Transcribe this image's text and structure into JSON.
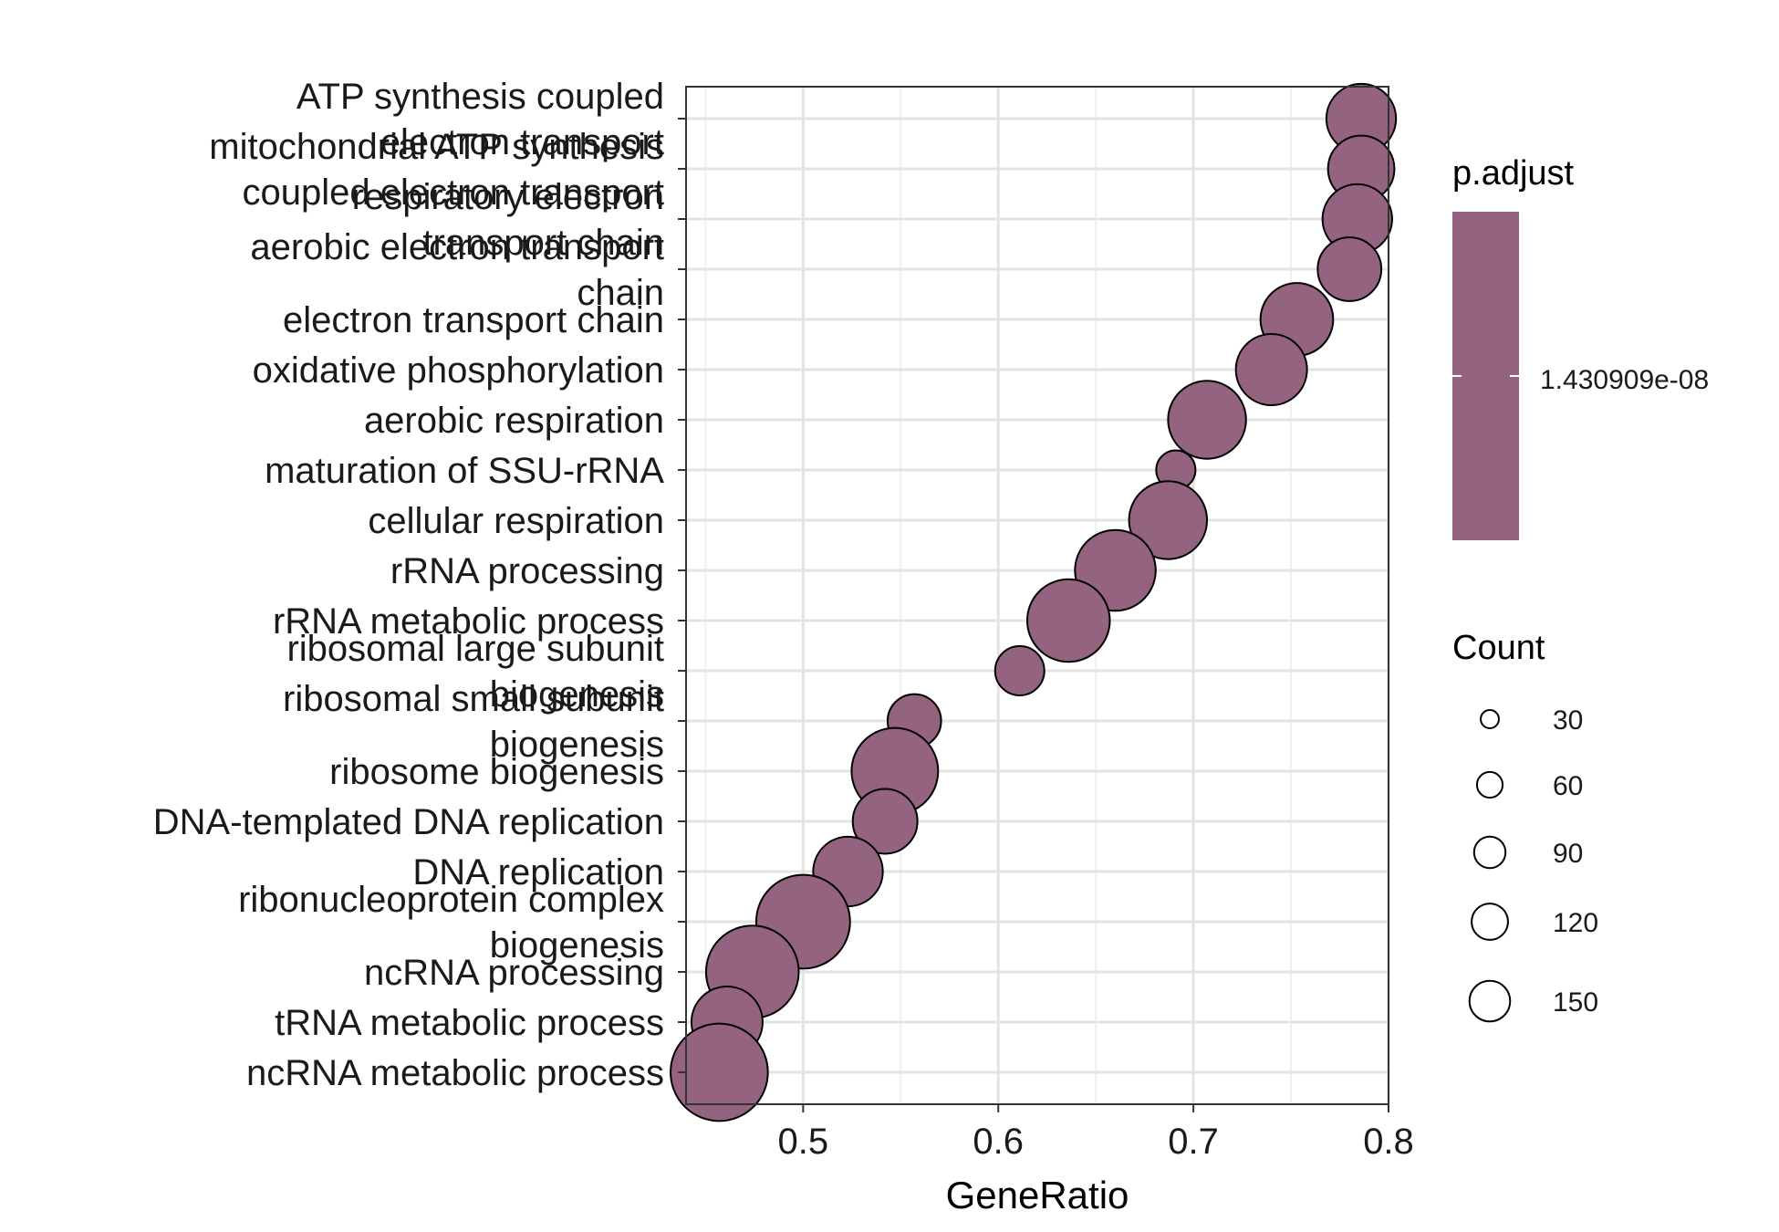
{
  "chart_data": {
    "type": "scatter",
    "xlabel": "GeneRatio",
    "xlim": [
      0.44,
      0.8
    ],
    "xticks": [
      0.5,
      0.6,
      0.7,
      0.8
    ],
    "xtick_labels": [
      "0.5",
      "0.6",
      "0.7",
      "0.8"
    ],
    "grid": true,
    "point_color": "#946380",
    "categories": [
      {
        "label": [
          "ATP synthesis coupled",
          "electron transport"
        ],
        "gene_ratio": 0.786,
        "count": 110
      },
      {
        "label": [
          "mitochondrial ATP synthesis",
          "coupled electron transport"
        ],
        "gene_ratio": 0.786,
        "count": 100
      },
      {
        "label": [
          "respiratory electron",
          "transport chain"
        ],
        "gene_ratio": 0.784,
        "count": 110
      },
      {
        "label": [
          "aerobic electron transport",
          "chain"
        ],
        "gene_ratio": 0.78,
        "count": 92
      },
      {
        "label": [
          "electron transport chain"
        ],
        "gene_ratio": 0.753,
        "count": 120
      },
      {
        "label": [
          "oxidative phosphorylation"
        ],
        "gene_ratio": 0.74,
        "count": 115
      },
      {
        "label": [
          "aerobic respiration"
        ],
        "gene_ratio": 0.707,
        "count": 138
      },
      {
        "label": [
          "maturation of SSU-rRNA"
        ],
        "gene_ratio": 0.691,
        "count": 35
      },
      {
        "label": [
          "cellular respiration"
        ],
        "gene_ratio": 0.687,
        "count": 138
      },
      {
        "label": [
          "rRNA processing"
        ],
        "gene_ratio": 0.66,
        "count": 148
      },
      {
        "label": [
          "rRNA metabolic process"
        ],
        "gene_ratio": 0.636,
        "count": 155
      },
      {
        "label": [
          "ribosomal large subunit",
          "biogenesis"
        ],
        "gene_ratio": 0.611,
        "count": 55
      },
      {
        "label": [
          "ribosomal small subunit",
          "biogenesis"
        ],
        "gene_ratio": 0.557,
        "count": 65
      },
      {
        "label": [
          "ribosome biogenesis"
        ],
        "gene_ratio": 0.547,
        "count": 170
      },
      {
        "label": [
          "DNA-templated DNA replication"
        ],
        "gene_ratio": 0.542,
        "count": 95
      },
      {
        "label": [
          "DNA replication"
        ],
        "gene_ratio": 0.523,
        "count": 110
      },
      {
        "label": [
          "ribonucleoprotein complex",
          "biogenesis"
        ],
        "gene_ratio": 0.5,
        "count": 200
      },
      {
        "label": [
          "ncRNA processing"
        ],
        "gene_ratio": 0.474,
        "count": 195
      },
      {
        "label": [
          "tRNA metabolic process"
        ],
        "gene_ratio": 0.461,
        "count": 115
      },
      {
        "label": [
          "ncRNA metabolic process"
        ],
        "gene_ratio": 0.457,
        "count": 215
      }
    ],
    "color_legend": {
      "title": "p.adjust",
      "value_label": "1.430909e-08",
      "color": "#946380"
    },
    "size_legend": {
      "title": "Count",
      "values": [
        30,
        60,
        90,
        120,
        150
      ],
      "labels": [
        "30",
        "60",
        "90",
        "120",
        "150"
      ]
    }
  }
}
